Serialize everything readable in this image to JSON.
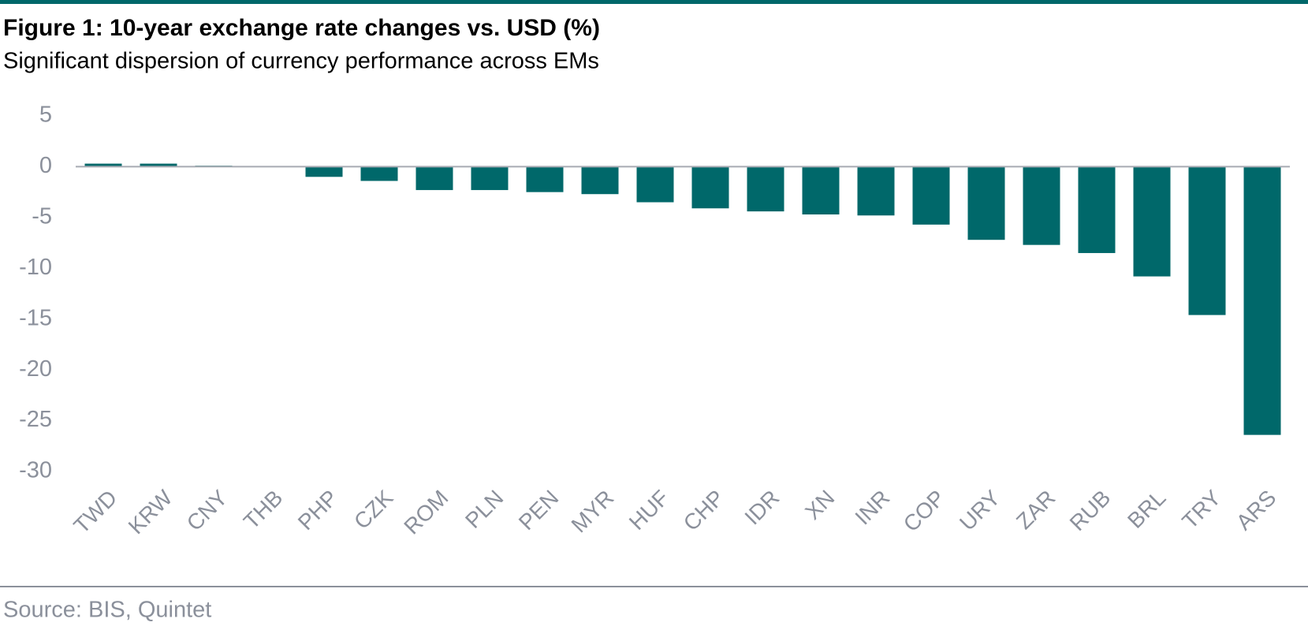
{
  "chart_data": {
    "type": "bar",
    "title": "Figure 1: 10-year exchange rate changes vs. USD (%)",
    "subtitle": "Significant dispersion of currency performance across EMs",
    "source": "Source: BIS, Quintet",
    "categories": [
      "TWD",
      "KRW",
      "CNY",
      "THB",
      "PHP",
      "CZK",
      "ROM",
      "PLN",
      "PEN",
      "MYR",
      "HUF",
      "CHP",
      "IDR",
      "XN",
      "INR",
      "COP",
      "URY",
      "ZAR",
      "RUB",
      "BRL",
      "TRY",
      "ARS"
    ],
    "values": [
      0.3,
      0.3,
      0.1,
      0,
      -1.0,
      -1.4,
      -2.3,
      -2.3,
      -2.5,
      -2.7,
      -3.5,
      -4.1,
      -4.4,
      -4.7,
      -4.8,
      -5.7,
      -7.2,
      -7.7,
      -8.5,
      -10.8,
      -14.6,
      -26.4
    ],
    "color": "#00686a",
    "ylim": [
      -30,
      5
    ],
    "yticks": [
      5,
      0,
      -5,
      -10,
      -15,
      -20,
      -25,
      -30
    ],
    "grid": false
  }
}
